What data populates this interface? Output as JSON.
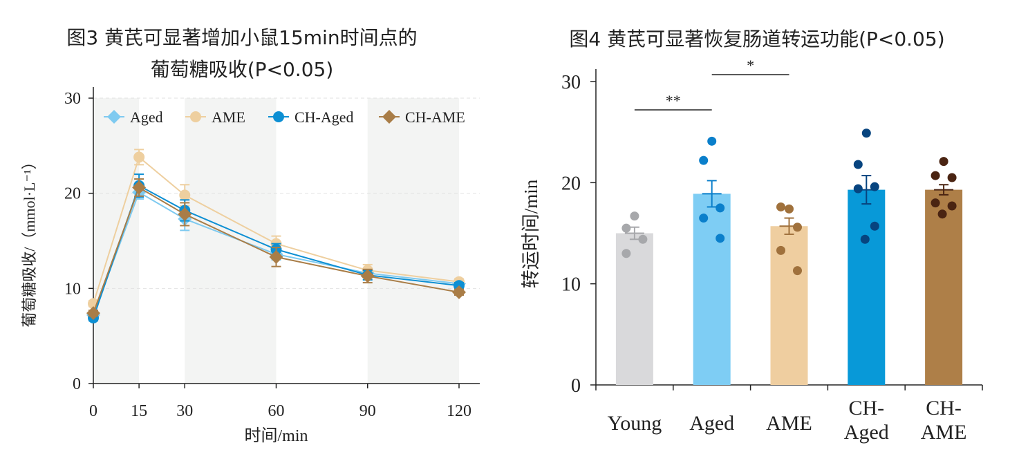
{
  "chart_data": [
    {
      "type": "line",
      "title": "图3 黄芪可显著增加小鼠15min时间点的",
      "subtitle": "葡萄糖吸收(P<0.05)",
      "xlabel": "时间/min",
      "ylabel": "葡萄糖吸收/（mmol·L⁻¹）",
      "x": [
        0,
        15,
        30,
        60,
        90,
        120
      ],
      "x_ticks": [
        "0",
        "15",
        "30",
        "60",
        "90",
        "120"
      ],
      "y_ticks": [
        "0",
        "10",
        "20",
        "30"
      ],
      "ylim": [
        0,
        30
      ],
      "xlim": [
        0,
        120
      ],
      "legend_position": "top",
      "series": [
        {
          "name": "Aged",
          "values": [
            7.2,
            20.1,
            17.3,
            13.6,
            11.6,
            10.5
          ],
          "errors": [
            0.3,
            0.7,
            1.2,
            0.6,
            0.5,
            0.3
          ],
          "color": "#7ecaf0",
          "marker": "diamond"
        },
        {
          "name": "AME",
          "values": [
            8.4,
            23.8,
            19.8,
            14.7,
            11.9,
            10.7
          ],
          "errors": [
            0.3,
            0.8,
            1.1,
            0.8,
            0.6,
            0.3
          ],
          "color": "#eecf9f",
          "marker": "circle"
        },
        {
          "name": "CH-Aged",
          "values": [
            6.9,
            20.8,
            18.2,
            14.1,
            11.4,
            10.3
          ],
          "errors": [
            0.3,
            1.2,
            1.1,
            0.6,
            0.5,
            0.3
          ],
          "color": "#0d8fd3",
          "marker": "circle"
        },
        {
          "name": "CH-AME",
          "values": [
            7.4,
            20.6,
            17.8,
            13.3,
            11.3,
            9.6
          ],
          "errors": [
            0.3,
            0.9,
            1.2,
            1.0,
            0.7,
            0.3
          ],
          "color": "#a97d47",
          "marker": "diamond"
        }
      ]
    },
    {
      "type": "bar",
      "title": "图4 黄芪可显著恢复肠道转运功能(P<0.05)",
      "ylabel": "转运时间/min",
      "categories": [
        "Young",
        "Aged",
        "AME",
        "CH-Aged",
        "CH-AME"
      ],
      "category_lines": [
        [
          "Young"
        ],
        [
          "Aged"
        ],
        [
          "AME"
        ],
        [
          "CH-",
          "Aged"
        ],
        [
          "CH-",
          "AME"
        ]
      ],
      "values": [
        15.0,
        18.9,
        15.7,
        19.3,
        19.3
      ],
      "errors": [
        0.6,
        1.3,
        0.8,
        1.4,
        0.5
      ],
      "colors": [
        "#d9d9db",
        "#7ecdf4",
        "#efcea0",
        "#0899d8",
        "#ae7f48"
      ],
      "dot_colors": [
        "#a7a8ab",
        "#0a7fcb",
        "#a0713c",
        "#07447f",
        "#4a2412"
      ],
      "points": [
        [
          16.7,
          15.5,
          14.4,
          13.0
        ],
        [
          24.1,
          22.2,
          17.5,
          16.5,
          14.5
        ],
        [
          17.4,
          17.6,
          15.6,
          13.3,
          11.3
        ],
        [
          24.9,
          21.8,
          19.6,
          19.4,
          15.7,
          14.4
        ],
        [
          22.1,
          20.7,
          20.5,
          18.0,
          17.7,
          16.9
        ]
      ],
      "y_ticks": [
        "0",
        "10",
        "20",
        "30"
      ],
      "ylim": [
        0,
        30
      ],
      "significance": [
        {
          "from": "Young",
          "to": "Aged",
          "label": "**"
        },
        {
          "from": "Aged",
          "to": "AME",
          "label": "*"
        }
      ]
    }
  ]
}
